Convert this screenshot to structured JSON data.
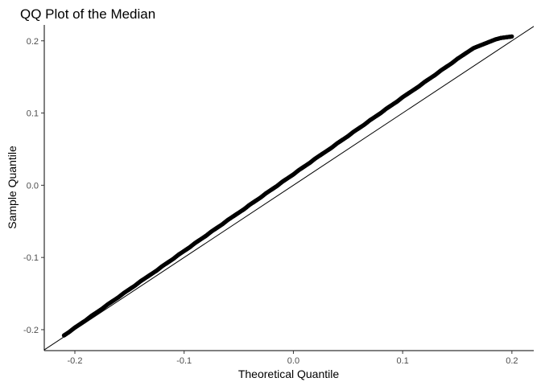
{
  "chart_data": {
    "type": "scatter",
    "title": "QQ Plot of the Median",
    "xlabel": "Theoretical Quantile",
    "ylabel": "Sample Quantile",
    "xlim": [
      -0.228,
      0.22
    ],
    "ylim": [
      -0.229,
      0.222
    ],
    "x_ticks": [
      -0.2,
      -0.1,
      0.0,
      0.1,
      0.2
    ],
    "x_tick_labels": [
      "-0.2",
      "-0.1",
      "0.0",
      "0.1",
      "0.2"
    ],
    "y_ticks": [
      -0.2,
      -0.1,
      0.0,
      0.1,
      0.2
    ],
    "y_tick_labels": [
      "-0.2",
      "-0.1",
      "0.0",
      "0.1",
      "0.2"
    ],
    "grid": false,
    "reference_line": {
      "slope": 1,
      "intercept": 0
    },
    "points_summary": {
      "count_approx": 1000,
      "x_range": [
        -0.21,
        0.2
      ],
      "y_range": [
        -0.208,
        0.206
      ]
    },
    "series": [
      {
        "x": [
          -0.21,
          -0.205,
          -0.2,
          -0.195,
          -0.19,
          -0.185,
          -0.18,
          -0.175,
          -0.17,
          -0.165,
          -0.16,
          -0.155,
          -0.15,
          -0.145,
          -0.14,
          -0.135,
          -0.13,
          -0.125,
          -0.12,
          -0.115,
          -0.11,
          -0.105,
          -0.1,
          -0.095,
          -0.09,
          -0.085,
          -0.08,
          -0.075,
          -0.07,
          -0.065,
          -0.06,
          -0.055,
          -0.05,
          -0.045,
          -0.04,
          -0.035,
          -0.03,
          -0.025,
          -0.02,
          -0.015,
          -0.01,
          -0.005,
          0.0,
          0.005,
          0.01,
          0.015,
          0.02,
          0.025,
          0.03,
          0.035,
          0.04,
          0.045,
          0.05,
          0.055,
          0.06,
          0.065,
          0.07,
          0.075,
          0.08,
          0.085,
          0.09,
          0.095,
          0.1,
          0.105,
          0.11,
          0.115,
          0.12,
          0.125,
          0.13,
          0.135,
          0.14,
          0.145,
          0.15,
          0.155,
          0.16,
          0.165,
          0.17,
          0.175,
          0.18,
          0.185,
          0.19,
          0.195,
          0.2
        ],
        "y": [
          -0.208,
          -0.203,
          -0.197,
          -0.192,
          -0.187,
          -0.181,
          -0.176,
          -0.171,
          -0.165,
          -0.16,
          -0.155,
          -0.149,
          -0.144,
          -0.139,
          -0.133,
          -0.128,
          -0.123,
          -0.118,
          -0.112,
          -0.107,
          -0.102,
          -0.096,
          -0.091,
          -0.086,
          -0.08,
          -0.075,
          -0.07,
          -0.064,
          -0.059,
          -0.054,
          -0.048,
          -0.043,
          -0.038,
          -0.033,
          -0.027,
          -0.022,
          -0.017,
          -0.011,
          -0.006,
          -0.001,
          0.005,
          0.01,
          0.015,
          0.021,
          0.026,
          0.031,
          0.037,
          0.042,
          0.047,
          0.052,
          0.058,
          0.063,
          0.068,
          0.074,
          0.079,
          0.084,
          0.09,
          0.095,
          0.1,
          0.106,
          0.111,
          0.116,
          0.122,
          0.127,
          0.132,
          0.137,
          0.143,
          0.148,
          0.153,
          0.159,
          0.164,
          0.169,
          0.175,
          0.18,
          0.185,
          0.19,
          0.193,
          0.196,
          0.199,
          0.202,
          0.204,
          0.205,
          0.206
        ]
      }
    ]
  }
}
